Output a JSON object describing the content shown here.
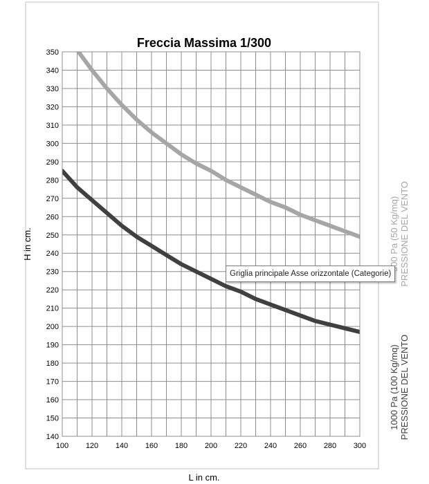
{
  "chart_data": {
    "type": "line",
    "title": "Freccia Massima 1/300",
    "xlabel": "L in cm.",
    "ylabel": "H  in cm.",
    "xlim": [
      100,
      300
    ],
    "ylim": [
      140,
      350
    ],
    "x_ticks": [
      100,
      120,
      140,
      160,
      180,
      200,
      220,
      240,
      260,
      280,
      300
    ],
    "y_ticks": [
      140,
      150,
      160,
      170,
      180,
      190,
      200,
      210,
      220,
      230,
      240,
      250,
      260,
      270,
      280,
      290,
      300,
      310,
      320,
      330,
      340,
      350
    ],
    "grid": true,
    "x_minor_step": 10,
    "x": [
      100,
      110,
      120,
      130,
      140,
      150,
      160,
      170,
      180,
      190,
      200,
      210,
      220,
      230,
      240,
      250,
      260,
      270,
      280,
      290,
      300
    ],
    "series": [
      {
        "name": "500 Pa (50 Kg/mq) PRESSIONE DEL VENTO",
        "label_lines": [
          "500 Pa (50 Kg/mq)",
          "PRESSIONE DEL VENTO"
        ],
        "color": "#a6a6a6",
        "values": [
          null,
          351,
          340,
          330,
          321,
          313,
          306,
          300,
          294,
          289,
          285,
          280,
          276,
          272,
          268,
          265,
          261,
          258,
          255,
          252,
          249
        ]
      },
      {
        "name": "1000 Pa (100 Kg/mq) PRESSIONE DEL VENTO",
        "label_lines": [
          "1000 Pa (100 Kg/mq)",
          "PRESSIONE DEL VENTO"
        ],
        "color": "#404040",
        "values": [
          285,
          276,
          269,
          262,
          255,
          249,
          244,
          239,
          234,
          230,
          226,
          222,
          219,
          215,
          212,
          209,
          206,
          203,
          201,
          199,
          197
        ]
      }
    ]
  },
  "tooltip": "Griglia principale Asse orizzontale (Categorie)"
}
